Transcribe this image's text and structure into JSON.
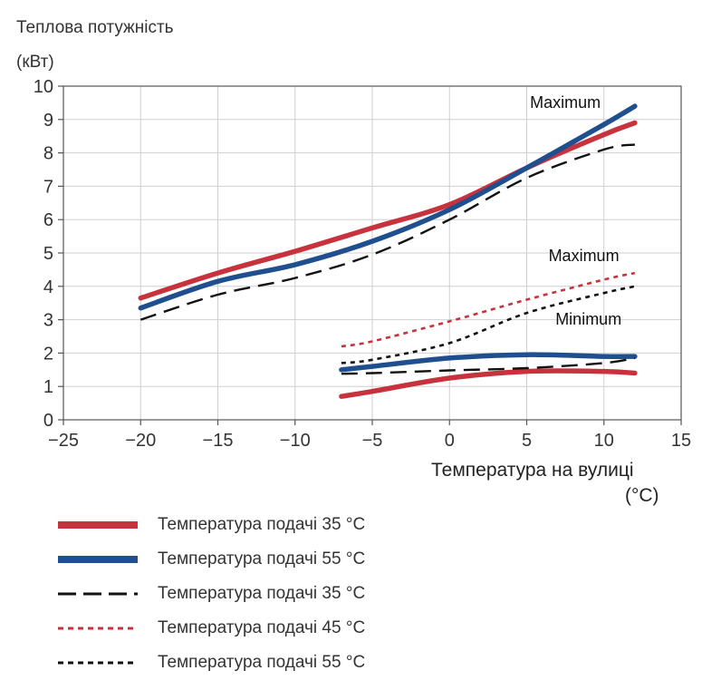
{
  "chart_data": {
    "type": "line",
    "ylabel_line1": "Теплова потужність",
    "ylabel_line2": "(кВт)",
    "xlabel_line1": "Температура на вулиці",
    "xlabel_line2": "(°C)",
    "xlim": [
      -25,
      15
    ],
    "ylim": [
      0,
      10
    ],
    "x_ticks": [
      "−25",
      "−20",
      "−15",
      "−10",
      "−5",
      "0",
      "5",
      "10",
      "15"
    ],
    "y_ticks": [
      "0",
      "1",
      "2",
      "3",
      "4",
      "5",
      "6",
      "7",
      "8",
      "9",
      "10"
    ],
    "grid": true,
    "annotations": [
      {
        "text": "Maximum",
        "x": 7.5,
        "y": 9.35
      },
      {
        "text": "Maximum",
        "x": 8.7,
        "y": 4.75
      },
      {
        "text": "Minimum",
        "x": 9.0,
        "y": 2.85
      }
    ],
    "series": [
      {
        "name": "Температура подачі 35 °C",
        "style": "solid-thick",
        "color": "#c8323c",
        "points": [
          [
            -20,
            3.65
          ],
          [
            -15,
            4.4
          ],
          [
            -10,
            5.05
          ],
          [
            -5,
            5.75
          ],
          [
            0,
            6.45
          ],
          [
            5,
            7.55
          ],
          [
            10,
            8.55
          ],
          [
            12,
            8.9
          ]
        ]
      },
      {
        "name": "Температура подачі 55 °C",
        "style": "solid-thick",
        "color": "#1f4f8f",
        "points": [
          [
            -20,
            3.35
          ],
          [
            -15,
            4.15
          ],
          [
            -10,
            4.65
          ],
          [
            -5,
            5.35
          ],
          [
            0,
            6.3
          ],
          [
            5,
            7.55
          ],
          [
            10,
            8.85
          ],
          [
            12,
            9.4
          ]
        ]
      },
      {
        "name": "Температура подачі 35 °C",
        "style": "long-dash",
        "color": "#111111",
        "points": [
          [
            -20,
            3.0
          ],
          [
            -15,
            3.75
          ],
          [
            -10,
            4.25
          ],
          [
            -5,
            4.95
          ],
          [
            0,
            6.0
          ],
          [
            5,
            7.25
          ],
          [
            10,
            8.1
          ],
          [
            12,
            8.25
          ]
        ]
      },
      {
        "name": "",
        "style": "solid-thick",
        "color": "#c8323c",
        "points": [
          [
            -7,
            0.7
          ],
          [
            -5,
            0.85
          ],
          [
            0,
            1.25
          ],
          [
            5,
            1.45
          ],
          [
            10,
            1.45
          ],
          [
            12,
            1.4
          ]
        ]
      },
      {
        "name": "",
        "style": "solid-thick",
        "color": "#1f4f8f",
        "points": [
          [
            -7,
            1.5
          ],
          [
            -5,
            1.6
          ],
          [
            0,
            1.85
          ],
          [
            5,
            1.95
          ],
          [
            10,
            1.9
          ],
          [
            12,
            1.9
          ]
        ]
      },
      {
        "name": "",
        "style": "long-dash",
        "color": "#111111",
        "points": [
          [
            -7,
            1.38
          ],
          [
            -5,
            1.4
          ],
          [
            0,
            1.48
          ],
          [
            5,
            1.55
          ],
          [
            10,
            1.7
          ],
          [
            12,
            1.85
          ]
        ]
      },
      {
        "name": "Температура подачі 45 °C",
        "style": "short-dash",
        "color": "#c8323c",
        "points": [
          [
            -7,
            2.2
          ],
          [
            -5,
            2.35
          ],
          [
            0,
            2.95
          ],
          [
            5,
            3.6
          ],
          [
            10,
            4.2
          ],
          [
            12,
            4.4
          ]
        ]
      },
      {
        "name": "Температура подачі 55 °C",
        "style": "short-dash",
        "color": "#111111",
        "points": [
          [
            -7,
            1.7
          ],
          [
            -5,
            1.8
          ],
          [
            0,
            2.3
          ],
          [
            5,
            3.2
          ],
          [
            10,
            3.8
          ],
          [
            12,
            4.0
          ]
        ]
      }
    ],
    "legend": [
      {
        "label": "Температура подачі 35 °C",
        "style": "solid-thick",
        "color": "#c8323c"
      },
      {
        "label": "Температура подачі 55 °C",
        "style": "solid-thick",
        "color": "#1f4f8f"
      },
      {
        "label": "Температура подачі 35 °C",
        "style": "long-dash",
        "color": "#111111"
      },
      {
        "label": "Температура подачі 45 °C",
        "style": "short-dash",
        "color": "#c8323c"
      },
      {
        "label": "Температура подачі 55 °C",
        "style": "short-dash",
        "color": "#111111"
      }
    ]
  }
}
